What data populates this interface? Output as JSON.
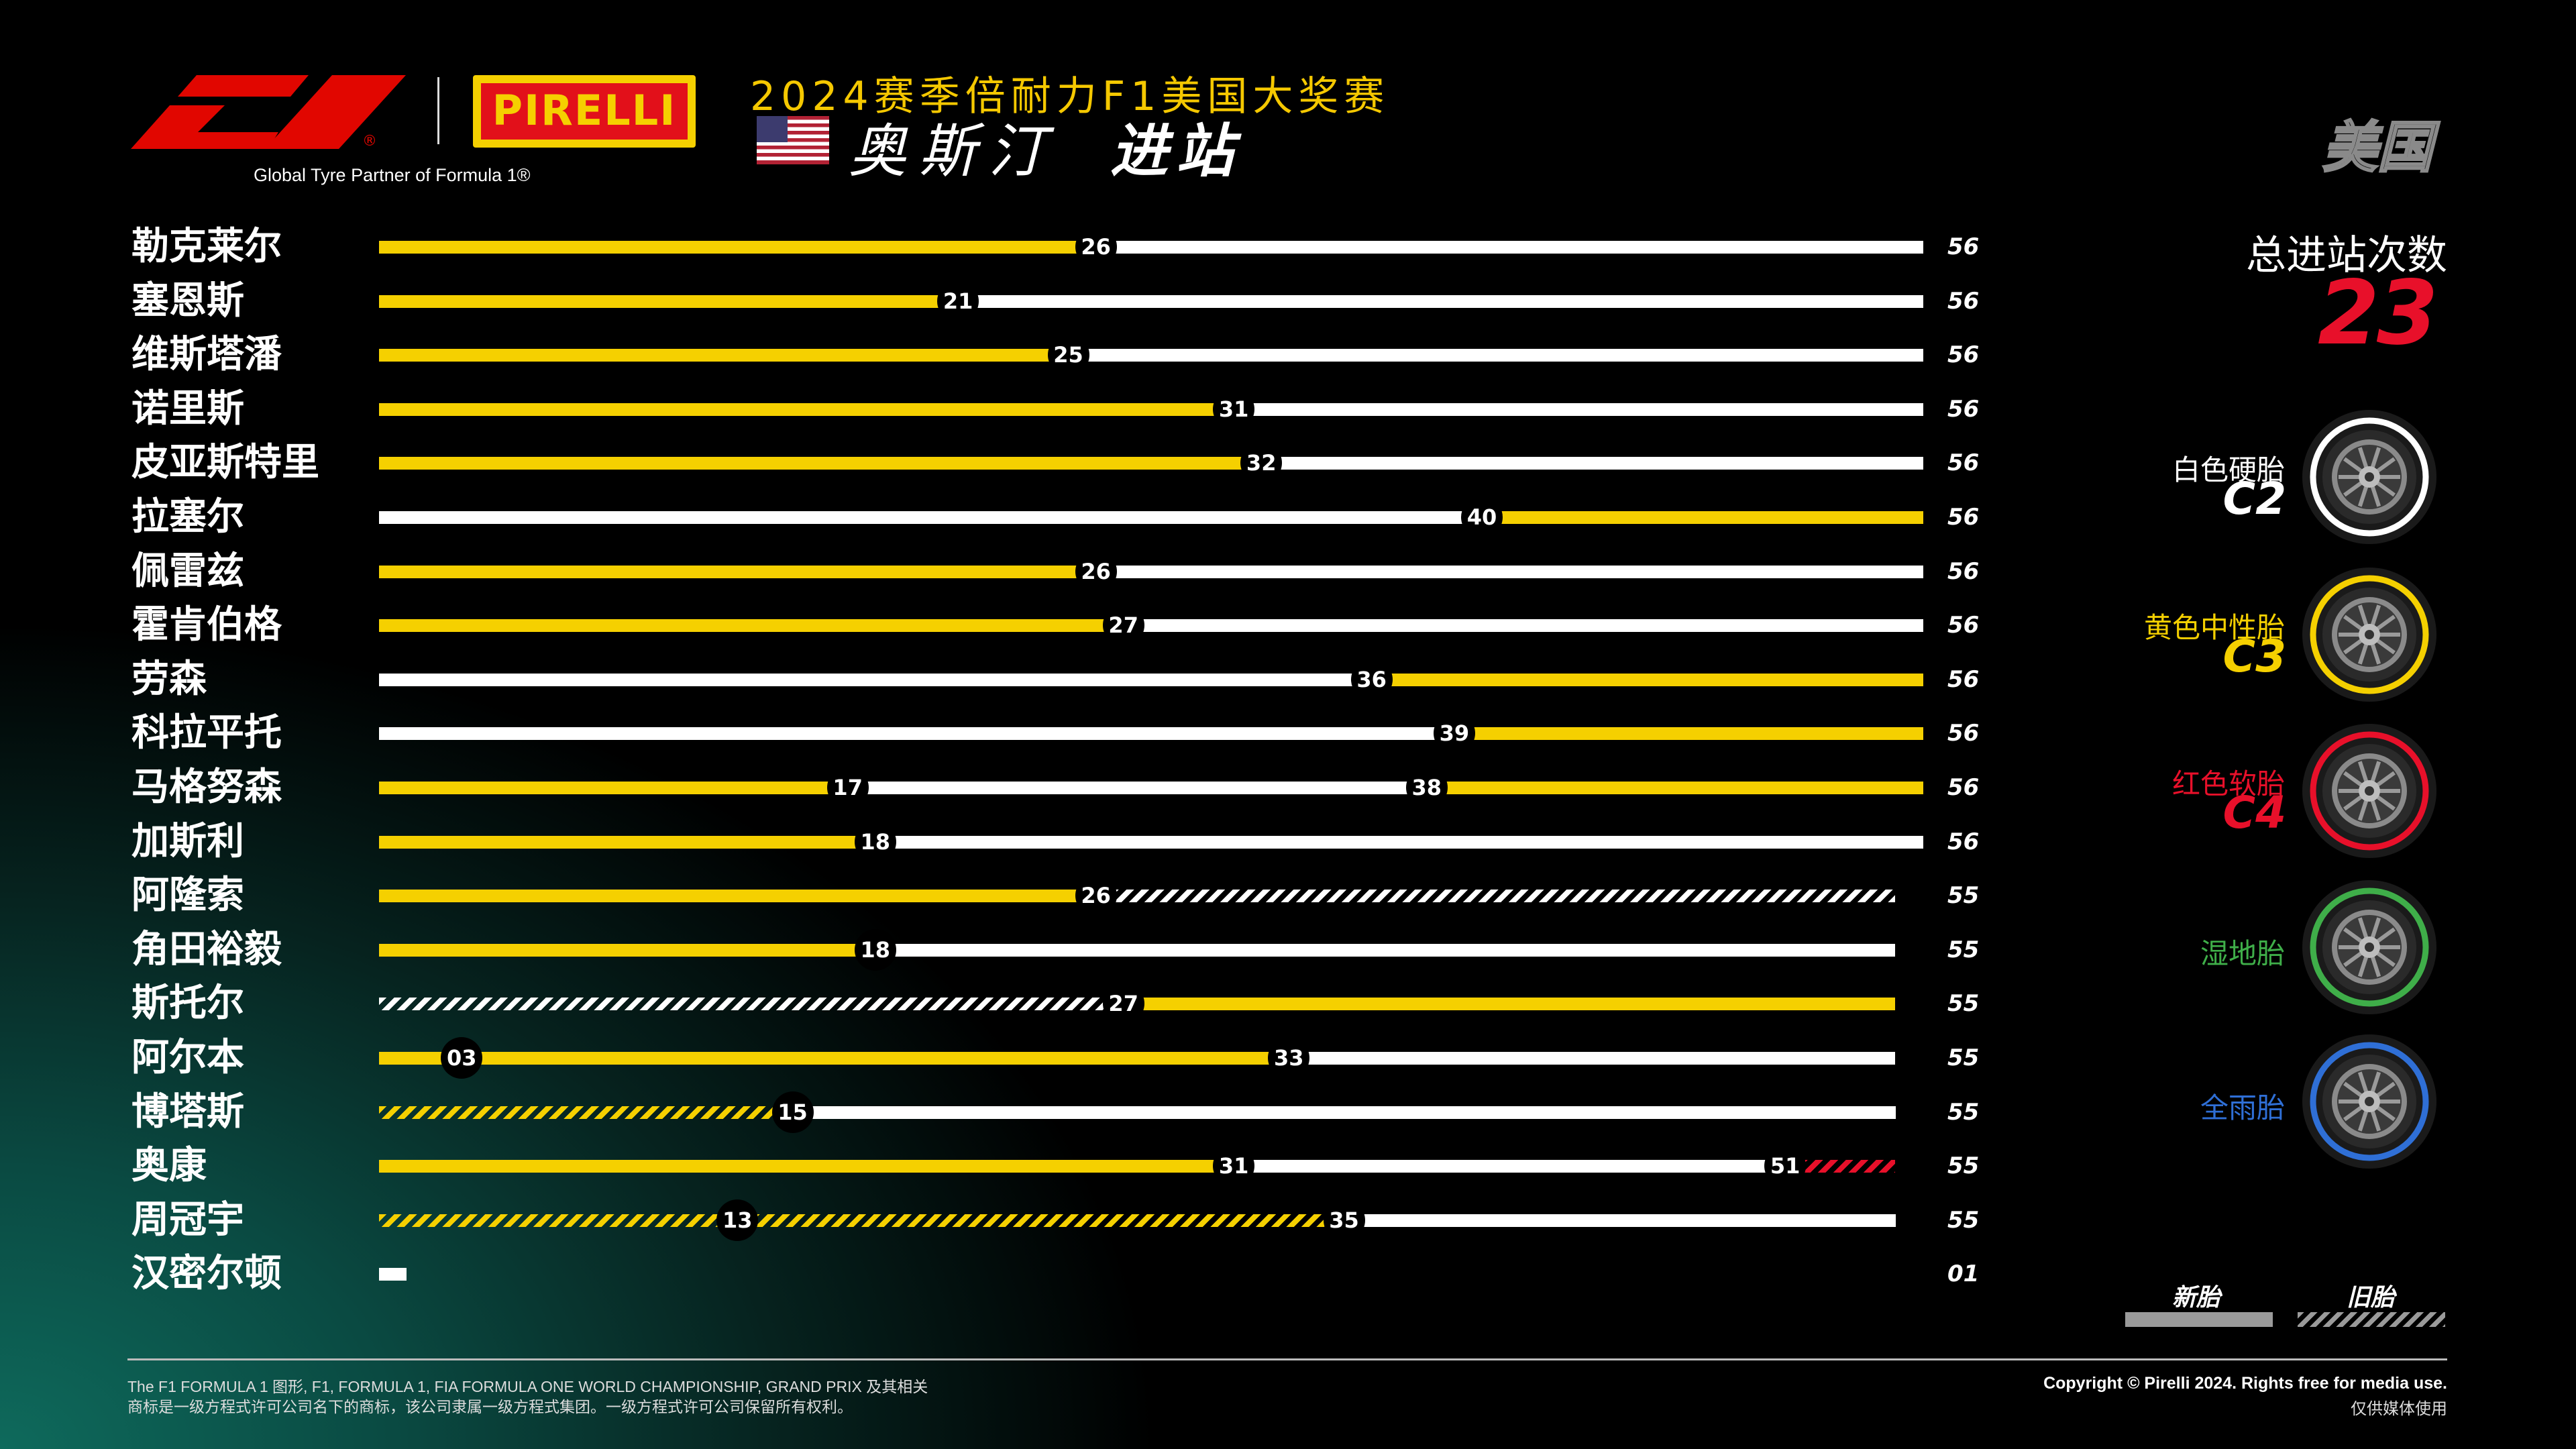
{
  "header": {
    "tagline": "Global Tyre Partner of Formula 1®",
    "pirelli_logo_text": "PIRELLI",
    "season_title": "2024赛季倍耐力F1美国大奖赛",
    "race_city": "奥斯汀",
    "race_pitstop": "进站",
    "country": "美国"
  },
  "drivers": [
    {
      "name": "勒克莱尔",
      "laps": "56",
      "segments": [
        {
          "c": "yellow",
          "from": 0,
          "to": 26
        },
        {
          "c": "white",
          "from": 26,
          "to": 56
        }
      ],
      "pits": [
        {
          "lap": 26,
          "label": "26"
        }
      ]
    },
    {
      "name": "塞恩斯",
      "laps": "56",
      "segments": [
        {
          "c": "yellow",
          "from": 0,
          "to": 21
        },
        {
          "c": "white",
          "from": 21,
          "to": 56
        }
      ],
      "pits": [
        {
          "lap": 21,
          "label": "21"
        }
      ]
    },
    {
      "name": "维斯塔潘",
      "laps": "56",
      "segments": [
        {
          "c": "yellow",
          "from": 0,
          "to": 25
        },
        {
          "c": "white",
          "from": 25,
          "to": 56
        }
      ],
      "pits": [
        {
          "lap": 25,
          "label": "25"
        }
      ]
    },
    {
      "name": "诺里斯",
      "laps": "56",
      "segments": [
        {
          "c": "yellow",
          "from": 0,
          "to": 31
        },
        {
          "c": "white",
          "from": 31,
          "to": 56
        }
      ],
      "pits": [
        {
          "lap": 31,
          "label": "31"
        }
      ]
    },
    {
      "name": "皮亚斯特里",
      "laps": "56",
      "segments": [
        {
          "c": "yellow",
          "from": 0,
          "to": 32
        },
        {
          "c": "white",
          "from": 32,
          "to": 56
        }
      ],
      "pits": [
        {
          "lap": 32,
          "label": "32"
        }
      ]
    },
    {
      "name": "拉塞尔",
      "laps": "56",
      "segments": [
        {
          "c": "white",
          "from": 0,
          "to": 40
        },
        {
          "c": "yellow",
          "from": 40,
          "to": 56
        }
      ],
      "pits": [
        {
          "lap": 40,
          "label": "40"
        }
      ]
    },
    {
      "name": "佩雷兹",
      "laps": "56",
      "segments": [
        {
          "c": "yellow",
          "from": 0,
          "to": 26
        },
        {
          "c": "white",
          "from": 26,
          "to": 56
        }
      ],
      "pits": [
        {
          "lap": 26,
          "label": "26"
        }
      ]
    },
    {
      "name": "霍肯伯格",
      "laps": "56",
      "segments": [
        {
          "c": "yellow",
          "from": 0,
          "to": 27
        },
        {
          "c": "white",
          "from": 27,
          "to": 56
        }
      ],
      "pits": [
        {
          "lap": 27,
          "label": "27"
        }
      ]
    },
    {
      "name": "劳森",
      "laps": "56",
      "segments": [
        {
          "c": "white",
          "from": 0,
          "to": 36
        },
        {
          "c": "yellow",
          "from": 36,
          "to": 56
        }
      ],
      "pits": [
        {
          "lap": 36,
          "label": "36"
        }
      ]
    },
    {
      "name": "科拉平托",
      "laps": "56",
      "segments": [
        {
          "c": "white",
          "from": 0,
          "to": 39
        },
        {
          "c": "yellow",
          "from": 39,
          "to": 56
        }
      ],
      "pits": [
        {
          "lap": 39,
          "label": "39"
        }
      ]
    },
    {
      "name": "马格努森",
      "laps": "56",
      "segments": [
        {
          "c": "yellow",
          "from": 0,
          "to": 17
        },
        {
          "c": "white",
          "from": 17,
          "to": 38
        },
        {
          "c": "yellow",
          "from": 38,
          "to": 56
        }
      ],
      "pits": [
        {
          "lap": 17,
          "label": "17"
        },
        {
          "lap": 38,
          "label": "38"
        }
      ]
    },
    {
      "name": "加斯利",
      "laps": "56",
      "segments": [
        {
          "c": "yellow",
          "from": 0,
          "to": 18
        },
        {
          "c": "white",
          "from": 18,
          "to": 56
        }
      ],
      "pits": [
        {
          "lap": 18,
          "label": "18"
        }
      ]
    },
    {
      "name": "阿隆索",
      "laps": "55",
      "segments": [
        {
          "c": "yellow",
          "from": 0,
          "to": 26
        },
        {
          "c": "white-used",
          "from": 26,
          "to": 55
        }
      ],
      "pits": [
        {
          "lap": 26,
          "label": "26"
        }
      ]
    },
    {
      "name": "角田裕毅",
      "laps": "55",
      "segments": [
        {
          "c": "yellow",
          "from": 0,
          "to": 18
        },
        {
          "c": "white",
          "from": 18,
          "to": 55
        }
      ],
      "pits": [
        {
          "lap": 18,
          "label": "18"
        }
      ]
    },
    {
      "name": "斯托尔",
      "laps": "55",
      "segments": [
        {
          "c": "white-used",
          "from": 0,
          "to": 27
        },
        {
          "c": "yellow",
          "from": 27,
          "to": 55
        }
      ],
      "pits": [
        {
          "lap": 27,
          "label": "27"
        }
      ]
    },
    {
      "name": "阿尔本",
      "laps": "55",
      "segments": [
        {
          "c": "yellow",
          "from": 0,
          "to": 3
        },
        {
          "c": "yellow",
          "from": 3,
          "to": 33
        },
        {
          "c": "white",
          "from": 33,
          "to": 55
        }
      ],
      "pits": [
        {
          "lap": 3,
          "label": "03"
        },
        {
          "lap": 33,
          "label": "33"
        }
      ]
    },
    {
      "name": "博塔斯",
      "laps": "55",
      "segments": [
        {
          "c": "yellow-used",
          "from": 0,
          "to": 15
        },
        {
          "c": "white",
          "from": 15,
          "to": 55
        }
      ],
      "pits": [
        {
          "lap": 15,
          "label": "15"
        }
      ]
    },
    {
      "name": "奥康",
      "laps": "55",
      "segments": [
        {
          "c": "yellow",
          "from": 0,
          "to": 31
        },
        {
          "c": "white",
          "from": 31,
          "to": 51
        },
        {
          "c": "red-used",
          "from": 51,
          "to": 55
        }
      ],
      "pits": [
        {
          "lap": 31,
          "label": "31"
        },
        {
          "lap": 51,
          "label": "51"
        }
      ]
    },
    {
      "name": "周冠宇",
      "laps": "55",
      "segments": [
        {
          "c": "yellow-used",
          "from": 0,
          "to": 13
        },
        {
          "c": "yellow-used",
          "from": 13,
          "to": 35
        },
        {
          "c": "white",
          "from": 35,
          "to": 55
        }
      ],
      "pits": [
        {
          "lap": 13,
          "label": "13"
        },
        {
          "lap": 35,
          "label": "35"
        }
      ]
    },
    {
      "name": "汉密尔顿",
      "laps": "01",
      "segments": [
        {
          "c": "white",
          "from": 0,
          "to": 1
        }
      ],
      "pits": []
    }
  ],
  "summary": {
    "total_label": "总进站次数",
    "total_value": "23"
  },
  "tyres": [
    {
      "name": "白色硬胎",
      "code": "C2",
      "color": "#ffffff",
      "icon": "hard-tyre-icon"
    },
    {
      "name": "黄色中性胎",
      "code": "C3",
      "color": "#f5d000",
      "icon": "medium-tyre-icon"
    },
    {
      "name": "红色软胎",
      "code": "C4",
      "color": "#e8102a",
      "icon": "soft-tyre-icon"
    },
    {
      "name": "湿地胎",
      "code": "",
      "color": "#3fae49",
      "icon": "wet-tyre-icon"
    },
    {
      "name": "全雨胎",
      "code": "",
      "color": "#2f6fd6",
      "icon": "intermediate-tyre-icon"
    }
  ],
  "legend": {
    "new_label": "新胎",
    "used_label": "旧胎"
  },
  "footer": {
    "legal_line1": "The F1 FORMULA 1 图形, F1, FORMULA 1, FIA FORMULA ONE WORLD CHAMPIONSHIP, GRAND PRIX 及其相关",
    "legal_line2": "商标是一级方程式许可公司名下的商标，该公司隶属一级方程式集团。一级方程式许可公司保留所有权利。",
    "copyright": "Copyright © Pirelli 2024. Rights free for media use.",
    "media_note": "仅供媒体使用"
  }
}
